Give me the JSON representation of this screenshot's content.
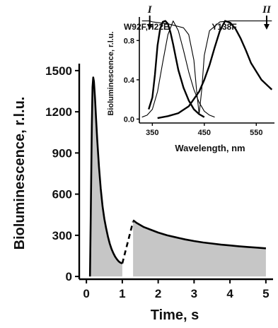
{
  "chart_data": [
    {
      "type": "area",
      "xlabel": "Time, s",
      "ylabel": "Bioluminescence, r.l.u.",
      "xlim": [
        -0.2,
        5.2
      ],
      "ylim": [
        -20,
        1520
      ],
      "xticks": [
        0,
        1,
        2,
        3,
        4,
        5
      ],
      "yticks": [
        0,
        300,
        600,
        900,
        1200,
        1500
      ],
      "xtick_labels": [
        "0",
        "1",
        "2",
        "3",
        "4",
        "5"
      ],
      "ytick_labels": [
        "0",
        "300",
        "600",
        "900",
        "1200",
        "1500"
      ],
      "fill_color": "#c6c6c6",
      "line_color": "#000000",
      "series": [
        {
          "style": "solid-filled",
          "x": [
            0.1,
            0.12,
            0.15,
            0.17,
            0.19,
            0.21,
            0.24,
            0.27,
            0.3,
            0.35,
            0.4,
            0.45,
            0.5,
            0.55,
            0.6,
            0.65,
            0.7,
            0.75,
            0.8,
            0.85,
            0.9,
            0.95,
            1.0
          ],
          "y": [
            0,
            400,
            1100,
            1380,
            1450,
            1420,
            1300,
            1150,
            1000,
            800,
            640,
            510,
            420,
            350,
            290,
            240,
            200,
            170,
            145,
            125,
            110,
            100,
            95
          ]
        },
        {
          "style": "dashed",
          "x": [
            1.0,
            1.3
          ],
          "y": [
            95,
            400
          ]
        },
        {
          "style": "solid-filled",
          "x": [
            1.3,
            1.4,
            1.6,
            1.8,
            2.0,
            2.25,
            2.5,
            2.75,
            3.0,
            3.25,
            3.5,
            3.75,
            4.0,
            4.25,
            4.5,
            4.75,
            5.0
          ],
          "y": [
            410,
            390,
            360,
            340,
            320,
            300,
            285,
            270,
            258,
            248,
            240,
            232,
            226,
            220,
            215,
            210,
            205
          ]
        }
      ]
    },
    {
      "type": "line",
      "xlabel": "Wavelength, nm",
      "ylabel": "Bioluminescence, r.l.u.",
      "xlim": [
        325,
        585
      ],
      "ylim": [
        -0.04,
        1.04
      ],
      "xticks": [
        350,
        450,
        550
      ],
      "yticks": [
        0.0,
        0.4,
        0.8
      ],
      "xtick_labels": [
        "350",
        "450",
        "550"
      ],
      "ytick_labels": [
        "0.0",
        "0.4",
        "0.8"
      ],
      "markers": [
        {
          "label": "I",
          "x": 345
        },
        {
          "label": "II",
          "x": 570
        }
      ],
      "series": [
        {
          "name": "W92F,H22E",
          "style": "thick",
          "x": [
            343,
            350,
            355,
            360,
            365,
            370,
            375,
            380,
            385,
            390,
            395,
            400,
            410,
            420,
            430,
            440,
            450
          ],
          "y": [
            0.1,
            0.22,
            0.45,
            0.75,
            0.92,
            0.99,
            1.0,
            0.97,
            0.88,
            0.76,
            0.63,
            0.5,
            0.32,
            0.19,
            0.1,
            0.05,
            0.02
          ]
        },
        {
          "style": "thin",
          "x": [
            330,
            340,
            350,
            360,
            370,
            380,
            390,
            400,
            410,
            420,
            430,
            440,
            450,
            460,
            470
          ],
          "y": [
            0.02,
            0.04,
            0.1,
            0.28,
            0.58,
            0.86,
            1.0,
            0.9,
            0.7,
            0.48,
            0.3,
            0.17,
            0.08,
            0.04,
            0.02
          ]
        },
        {
          "name": "Y138F",
          "style": "thick",
          "x": [
            360,
            380,
            400,
            420,
            440,
            450,
            460,
            470,
            480,
            490,
            500,
            510,
            520,
            530,
            540,
            560,
            580
          ],
          "y": [
            0.01,
            0.03,
            0.06,
            0.13,
            0.28,
            0.4,
            0.55,
            0.73,
            0.9,
            1.0,
            0.98,
            0.92,
            0.82,
            0.7,
            0.57,
            0.4,
            0.3
          ]
        },
        {
          "style": "thin-plateau",
          "x": [
            330,
            345,
            350,
            380,
            410,
            420,
            430,
            435,
            440,
            445,
            450,
            460,
            480,
            500,
            580
          ],
          "y": [
            1.0,
            1.0,
            0.99,
            0.97,
            0.93,
            0.86,
            0.6,
            0.3,
            0.05,
            0.3,
            0.65,
            0.9,
            0.99,
            1.0,
            1.0
          ]
        }
      ]
    }
  ]
}
